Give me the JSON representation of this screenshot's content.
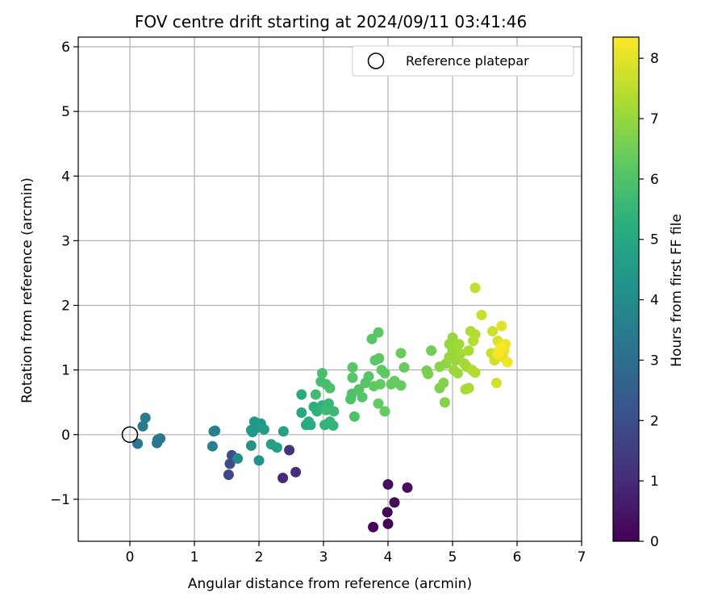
{
  "chart_data": {
    "type": "scatter",
    "title": "FOV centre drift starting at 2024/09/11 03:41:46",
    "xlabel": "Angular distance from reference (arcmin)",
    "ylabel": "Rotation from reference (arcmin)",
    "xlim": [
      -0.8,
      7.0
    ],
    "ylim": [
      -1.65,
      6.15
    ],
    "xticks": [
      0,
      1,
      2,
      3,
      4,
      5,
      6,
      7
    ],
    "yticks": [
      -1,
      0,
      1,
      2,
      3,
      4,
      5,
      6
    ],
    "xtick_labels": [
      "0",
      "1",
      "2",
      "3",
      "4",
      "5",
      "6",
      "7"
    ],
    "ytick_labels": [
      "−1",
      "0",
      "1",
      "2",
      "3",
      "4",
      "5",
      "6"
    ],
    "grid": true,
    "legend": {
      "position": "top-right",
      "label": "Reference platepar"
    },
    "colorbar": {
      "label": "Hours from first FF file",
      "colormap": "viridis",
      "range": [
        0,
        8.35
      ],
      "ticks": [
        0,
        1,
        2,
        3,
        4,
        5,
        6,
        7,
        8
      ],
      "tick_labels": [
        "0",
        "1",
        "2",
        "3",
        "4",
        "5",
        "6",
        "7",
        "8"
      ]
    },
    "reference_point": {
      "x": 0,
      "y": 0
    },
    "points": [
      {
        "x": 3.77,
        "y": -1.43,
        "h": 0.05
      },
      {
        "x": 4.0,
        "y": -1.38,
        "h": 0.1
      },
      {
        "x": 3.99,
        "y": -1.2,
        "h": 0.15
      },
      {
        "x": 4.1,
        "y": -1.05,
        "h": 0.2
      },
      {
        "x": 4.0,
        "y": -0.77,
        "h": 0.25
      },
      {
        "x": 4.3,
        "y": -0.82,
        "h": 0.3
      },
      {
        "x": 2.37,
        "y": -0.67,
        "h": 1.0
      },
      {
        "x": 2.57,
        "y": -0.58,
        "h": 1.1
      },
      {
        "x": 2.47,
        "y": -0.24,
        "h": 1.2
      },
      {
        "x": 1.53,
        "y": -0.62,
        "h": 1.8
      },
      {
        "x": 1.55,
        "y": -0.45,
        "h": 1.9
      },
      {
        "x": 1.58,
        "y": -0.32,
        "h": 2.0
      },
      {
        "x": 0.42,
        "y": -0.13,
        "h": 3.2
      },
      {
        "x": 0.47,
        "y": -0.06,
        "h": 3.25
      },
      {
        "x": 0.43,
        "y": -0.08,
        "h": 3.3
      },
      {
        "x": 0.12,
        "y": -0.14,
        "h": 3.35
      },
      {
        "x": 0.2,
        "y": 0.13,
        "h": 3.4
      },
      {
        "x": 0.24,
        "y": 0.26,
        "h": 3.45
      },
      {
        "x": 1.32,
        "y": 0.06,
        "h": 3.6
      },
      {
        "x": 1.3,
        "y": 0.05,
        "h": 3.65
      },
      {
        "x": 1.28,
        "y": -0.18,
        "h": 3.7
      },
      {
        "x": 1.67,
        "y": -0.37,
        "h": 3.9
      },
      {
        "x": 2.0,
        "y": -0.4,
        "h": 4.2
      },
      {
        "x": 1.88,
        "y": -0.17,
        "h": 4.3
      },
      {
        "x": 1.9,
        "y": 0.04,
        "h": 4.35
      },
      {
        "x": 1.95,
        "y": 0.1,
        "h": 4.4
      },
      {
        "x": 1.88,
        "y": 0.07,
        "h": 4.45
      },
      {
        "x": 1.93,
        "y": 0.2,
        "h": 4.5
      },
      {
        "x": 2.03,
        "y": 0.17,
        "h": 4.55
      },
      {
        "x": 2.08,
        "y": 0.08,
        "h": 4.6
      },
      {
        "x": 2.19,
        "y": -0.15,
        "h": 4.7
      },
      {
        "x": 2.28,
        "y": -0.2,
        "h": 4.75
      },
      {
        "x": 2.38,
        "y": 0.05,
        "h": 4.8
      },
      {
        "x": 2.66,
        "y": 0.34,
        "h": 5.0
      },
      {
        "x": 2.73,
        "y": 0.15,
        "h": 5.05
      },
      {
        "x": 2.8,
        "y": 0.15,
        "h": 5.1
      },
      {
        "x": 2.77,
        "y": 0.2,
        "h": 5.15
      },
      {
        "x": 2.66,
        "y": 0.62,
        "h": 5.2
      },
      {
        "x": 2.85,
        "y": 0.43,
        "h": 5.25
      },
      {
        "x": 2.9,
        "y": 0.36,
        "h": 5.3
      },
      {
        "x": 2.98,
        "y": 0.45,
        "h": 5.35
      },
      {
        "x": 3.02,
        "y": 0.15,
        "h": 5.4
      },
      {
        "x": 3.1,
        "y": 0.2,
        "h": 5.45
      },
      {
        "x": 3.15,
        "y": 0.14,
        "h": 5.5
      },
      {
        "x": 3.08,
        "y": 0.48,
        "h": 5.55
      },
      {
        "x": 3.16,
        "y": 0.36,
        "h": 5.6
      },
      {
        "x": 3.04,
        "y": 0.38,
        "h": 5.65
      },
      {
        "x": 2.88,
        "y": 0.62,
        "h": 5.7
      },
      {
        "x": 2.96,
        "y": 0.82,
        "h": 5.75
      },
      {
        "x": 3.04,
        "y": 0.78,
        "h": 5.8
      },
      {
        "x": 2.98,
        "y": 0.95,
        "h": 5.85
      },
      {
        "x": 3.1,
        "y": 0.72,
        "h": 5.9
      },
      {
        "x": 3.42,
        "y": 0.55,
        "h": 5.95
      },
      {
        "x": 3.44,
        "y": 0.63,
        "h": 6.0
      },
      {
        "x": 3.48,
        "y": 0.28,
        "h": 6.0
      },
      {
        "x": 3.55,
        "y": 0.7,
        "h": 6.05
      },
      {
        "x": 3.6,
        "y": 0.58,
        "h": 6.05
      },
      {
        "x": 3.65,
        "y": 0.8,
        "h": 6.1
      },
      {
        "x": 3.7,
        "y": 0.9,
        "h": 6.1
      },
      {
        "x": 3.45,
        "y": 0.88,
        "h": 6.1
      },
      {
        "x": 3.45,
        "y": 1.04,
        "h": 6.15
      },
      {
        "x": 3.75,
        "y": 1.48,
        "h": 6.15
      },
      {
        "x": 3.85,
        "y": 1.58,
        "h": 6.2
      },
      {
        "x": 3.8,
        "y": 1.15,
        "h": 6.2
      },
      {
        "x": 3.86,
        "y": 1.18,
        "h": 6.2
      },
      {
        "x": 3.9,
        "y": 1.0,
        "h": 6.25
      },
      {
        "x": 3.95,
        "y": 0.95,
        "h": 6.25
      },
      {
        "x": 3.78,
        "y": 0.75,
        "h": 6.25
      },
      {
        "x": 3.88,
        "y": 0.78,
        "h": 6.3
      },
      {
        "x": 3.85,
        "y": 0.48,
        "h": 6.3
      },
      {
        "x": 3.95,
        "y": 0.36,
        "h": 6.3
      },
      {
        "x": 4.05,
        "y": 0.78,
        "h": 6.35
      },
      {
        "x": 4.1,
        "y": 0.83,
        "h": 6.35
      },
      {
        "x": 4.2,
        "y": 0.76,
        "h": 6.35
      },
      {
        "x": 4.2,
        "y": 1.26,
        "h": 6.4
      },
      {
        "x": 4.25,
        "y": 1.04,
        "h": 6.4
      },
      {
        "x": 4.67,
        "y": 1.3,
        "h": 6.5
      },
      {
        "x": 4.6,
        "y": 0.99,
        "h": 6.55
      },
      {
        "x": 4.62,
        "y": 0.94,
        "h": 6.6
      },
      {
        "x": 4.8,
        "y": 0.72,
        "h": 6.7
      },
      {
        "x": 4.86,
        "y": 0.8,
        "h": 6.75
      },
      {
        "x": 4.88,
        "y": 0.5,
        "h": 6.8
      },
      {
        "x": 4.8,
        "y": 1.05,
        "h": 6.85
      },
      {
        "x": 4.9,
        "y": 1.1,
        "h": 6.9
      },
      {
        "x": 4.95,
        "y": 1.4,
        "h": 7.0
      },
      {
        "x": 5.0,
        "y": 1.5,
        "h": 7.0
      },
      {
        "x": 4.95,
        "y": 1.2,
        "h": 7.0
      },
      {
        "x": 5.0,
        "y": 1.3,
        "h": 7.05
      },
      {
        "x": 5.05,
        "y": 1.15,
        "h": 7.05
      },
      {
        "x": 5.02,
        "y": 1.0,
        "h": 7.1
      },
      {
        "x": 5.08,
        "y": 0.95,
        "h": 7.1
      },
      {
        "x": 5.1,
        "y": 1.4,
        "h": 7.15
      },
      {
        "x": 5.12,
        "y": 1.25,
        "h": 7.15
      },
      {
        "x": 5.18,
        "y": 1.1,
        "h": 7.2
      },
      {
        "x": 5.22,
        "y": 1.05,
        "h": 7.2
      },
      {
        "x": 5.2,
        "y": 0.7,
        "h": 7.25
      },
      {
        "x": 5.25,
        "y": 0.72,
        "h": 7.25
      },
      {
        "x": 5.25,
        "y": 1.3,
        "h": 7.3
      },
      {
        "x": 5.28,
        "y": 1.6,
        "h": 7.3
      },
      {
        "x": 5.3,
        "y": 1.0,
        "h": 7.35
      },
      {
        "x": 5.35,
        "y": 0.96,
        "h": 7.35
      },
      {
        "x": 5.35,
        "y": 1.55,
        "h": 7.4
      },
      {
        "x": 5.32,
        "y": 1.45,
        "h": 7.4
      },
      {
        "x": 5.35,
        "y": 2.27,
        "h": 7.6
      },
      {
        "x": 5.45,
        "y": 1.85,
        "h": 7.65
      },
      {
        "x": 5.6,
        "y": 1.26,
        "h": 7.7
      },
      {
        "x": 5.62,
        "y": 1.6,
        "h": 7.7
      },
      {
        "x": 5.65,
        "y": 1.15,
        "h": 7.75
      },
      {
        "x": 5.68,
        "y": 0.8,
        "h": 7.8
      },
      {
        "x": 5.7,
        "y": 1.45,
        "h": 7.85
      },
      {
        "x": 5.72,
        "y": 1.3,
        "h": 7.9
      },
      {
        "x": 5.75,
        "y": 1.4,
        "h": 7.95
      },
      {
        "x": 5.76,
        "y": 1.68,
        "h": 8.0
      },
      {
        "x": 5.78,
        "y": 1.2,
        "h": 8.05
      },
      {
        "x": 5.8,
        "y": 1.3,
        "h": 8.1
      },
      {
        "x": 5.82,
        "y": 1.4,
        "h": 8.15
      },
      {
        "x": 5.85,
        "y": 1.12,
        "h": 8.2
      },
      {
        "x": 5.7,
        "y": 1.25,
        "h": 8.25
      },
      {
        "x": 5.75,
        "y": 1.35,
        "h": 8.3
      }
    ]
  }
}
